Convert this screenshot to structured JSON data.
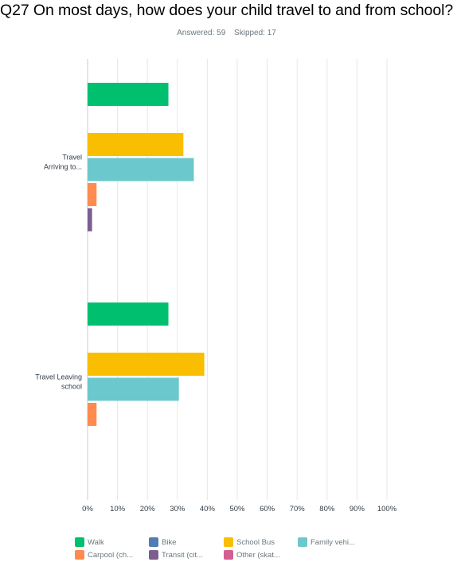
{
  "question": {
    "title": "Q27 On most days, how does your child travel to and from school?",
    "answered_label": "Answered: 59",
    "skipped_label": "Skipped: 17"
  },
  "chart_data": {
    "type": "bar",
    "orientation": "horizontal",
    "categories": [
      "Travel Arriving to...",
      "Travel Leaving school"
    ],
    "category_label_lines": [
      [
        "Travel",
        "Arriving to..."
      ],
      [
        "Travel Leaving",
        "school"
      ]
    ],
    "series": [
      {
        "name": "Walk",
        "color": "#00bf6f",
        "values": [
          27,
          27
        ]
      },
      {
        "name": "Bike",
        "color": "#507cb6",
        "values": [
          0,
          0
        ]
      },
      {
        "name": "School Bus",
        "color": "#f9be00",
        "values": [
          32,
          39
        ]
      },
      {
        "name": "Family vehi...",
        "color": "#6bc8cd",
        "values": [
          35.5,
          30.5
        ]
      },
      {
        "name": "Carpool (ch...",
        "color": "#ff8b4f",
        "values": [
          3,
          3
        ]
      },
      {
        "name": "Transit (cit...",
        "color": "#7d5e90",
        "values": [
          1.5,
          0
        ]
      },
      {
        "name": "Other (skat...",
        "color": "#d25f90",
        "values": [
          0,
          0
        ]
      }
    ],
    "xlim": [
      0,
      100
    ],
    "x_ticks": [
      "0%",
      "10%",
      "20%",
      "30%",
      "40%",
      "50%",
      "60%",
      "70%",
      "80%",
      "90%",
      "100%"
    ],
    "grid": true,
    "legend_position": "bottom"
  }
}
